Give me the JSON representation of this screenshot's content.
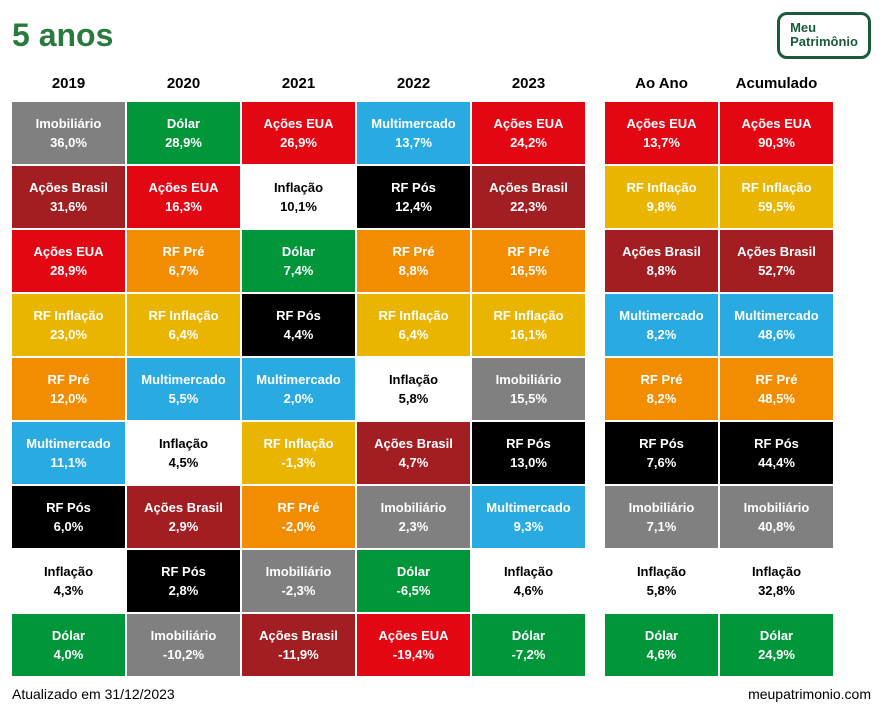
{
  "title": "5 anos",
  "logo": {
    "line1": "Meu",
    "line2": "Patrimônio"
  },
  "footer_left": "Atualizado em 31/12/2023",
  "footer_right": "meupatrimonio.com",
  "colors": {
    "imobiliario": {
      "bg": "#808080",
      "fg": "#ffffff"
    },
    "dolar": {
      "bg": "#009639",
      "fg": "#ffffff"
    },
    "acoes_eua": {
      "bg": "#e30613",
      "fg": "#ffffff"
    },
    "multimercado": {
      "bg": "#29abe2",
      "fg": "#ffffff"
    },
    "acoes_brasil": {
      "bg": "#a31e22",
      "fg": "#ffffff"
    },
    "rf_inflacao": {
      "bg": "#e9b500",
      "fg": "#ffffff"
    },
    "inflacao": {
      "bg": "#ffffff",
      "fg": "#000000"
    },
    "rf_pre": {
      "bg": "#f28c00",
      "fg": "#ffffff"
    },
    "rf_pos": {
      "bg": "#000000",
      "fg": "#ffffff"
    }
  },
  "columns": [
    {
      "header": "2019",
      "cells": [
        {
          "k": "imobiliario",
          "label": "Imobiliário",
          "value": "36,0%"
        },
        {
          "k": "acoes_brasil",
          "label": "Ações Brasil",
          "value": "31,6%"
        },
        {
          "k": "acoes_eua",
          "label": "Ações EUA",
          "value": "28,9%"
        },
        {
          "k": "rf_inflacao",
          "label": "RF Inflação",
          "value": "23,0%"
        },
        {
          "k": "rf_pre",
          "label": "RF Pré",
          "value": "12,0%"
        },
        {
          "k": "multimercado",
          "label": "Multimercado",
          "value": "11,1%"
        },
        {
          "k": "rf_pos",
          "label": "RF Pós",
          "value": "6,0%"
        },
        {
          "k": "inflacao",
          "label": "Inflação",
          "value": "4,3%"
        },
        {
          "k": "dolar",
          "label": "Dólar",
          "value": "4,0%"
        }
      ]
    },
    {
      "header": "2020",
      "cells": [
        {
          "k": "dolar",
          "label": "Dólar",
          "value": "28,9%"
        },
        {
          "k": "acoes_eua",
          "label": "Ações EUA",
          "value": "16,3%"
        },
        {
          "k": "rf_pre",
          "label": "RF Pré",
          "value": "6,7%"
        },
        {
          "k": "rf_inflacao",
          "label": "RF Inflação",
          "value": "6,4%"
        },
        {
          "k": "multimercado",
          "label": "Multimercado",
          "value": "5,5%"
        },
        {
          "k": "inflacao",
          "label": "Inflação",
          "value": "4,5%"
        },
        {
          "k": "acoes_brasil",
          "label": "Ações Brasil",
          "value": "2,9%"
        },
        {
          "k": "rf_pos",
          "label": "RF Pós",
          "value": "2,8%"
        },
        {
          "k": "imobiliario",
          "label": "Imobiliário",
          "value": "-10,2%"
        }
      ]
    },
    {
      "header": "2021",
      "cells": [
        {
          "k": "acoes_eua",
          "label": "Ações EUA",
          "value": "26,9%"
        },
        {
          "k": "inflacao",
          "label": "Inflação",
          "value": "10,1%"
        },
        {
          "k": "dolar",
          "label": "Dólar",
          "value": "7,4%"
        },
        {
          "k": "rf_pos",
          "label": "RF Pós",
          "value": "4,4%"
        },
        {
          "k": "multimercado",
          "label": "Multimercado",
          "value": "2,0%"
        },
        {
          "k": "rf_inflacao",
          "label": "RF Inflação",
          "value": "-1,3%"
        },
        {
          "k": "rf_pre",
          "label": "RF Pré",
          "value": "-2,0%"
        },
        {
          "k": "imobiliario",
          "label": "Imobiliário",
          "value": "-2,3%"
        },
        {
          "k": "acoes_brasil",
          "label": "Ações Brasil",
          "value": "-11,9%"
        }
      ]
    },
    {
      "header": "2022",
      "cells": [
        {
          "k": "multimercado",
          "label": "Multimercado",
          "value": "13,7%"
        },
        {
          "k": "rf_pos",
          "label": "RF Pós",
          "value": "12,4%"
        },
        {
          "k": "rf_pre",
          "label": "RF Pré",
          "value": "8,8%"
        },
        {
          "k": "rf_inflacao",
          "label": "RF Inflação",
          "value": "6,4%"
        },
        {
          "k": "inflacao",
          "label": "Inflação",
          "value": "5,8%"
        },
        {
          "k": "acoes_brasil",
          "label": "Ações Brasil",
          "value": "4,7%"
        },
        {
          "k": "imobiliario",
          "label": "Imobiliário",
          "value": "2,3%"
        },
        {
          "k": "dolar",
          "label": "Dólar",
          "value": "-6,5%"
        },
        {
          "k": "acoes_eua",
          "label": "Ações EUA",
          "value": "-19,4%"
        }
      ]
    },
    {
      "header": "2023",
      "cells": [
        {
          "k": "acoes_eua",
          "label": "Ações EUA",
          "value": "24,2%"
        },
        {
          "k": "acoes_brasil",
          "label": "Ações Brasil",
          "value": "22,3%"
        },
        {
          "k": "rf_pre",
          "label": "RF Pré",
          "value": "16,5%"
        },
        {
          "k": "rf_inflacao",
          "label": "RF Inflação",
          "value": "16,1%"
        },
        {
          "k": "imobiliario",
          "label": "Imobiliário",
          "value": "15,5%"
        },
        {
          "k": "rf_pos",
          "label": "RF Pós",
          "value": "13,0%"
        },
        {
          "k": "multimercado",
          "label": "Multimercado",
          "value": "9,3%"
        },
        {
          "k": "inflacao",
          "label": "Inflação",
          "value": "4,6%"
        },
        {
          "k": "dolar",
          "label": "Dólar",
          "value": "-7,2%"
        }
      ]
    }
  ],
  "summary_columns": [
    {
      "header": "Ao Ano",
      "cells": [
        {
          "k": "acoes_eua",
          "label": "Ações EUA",
          "value": "13,7%"
        },
        {
          "k": "rf_inflacao",
          "label": "RF Inflação",
          "value": "9,8%"
        },
        {
          "k": "acoes_brasil",
          "label": "Ações Brasil",
          "value": "8,8%"
        },
        {
          "k": "multimercado",
          "label": "Multimercado",
          "value": "8,2%"
        },
        {
          "k": "rf_pre",
          "label": "RF Pré",
          "value": "8,2%"
        },
        {
          "k": "rf_pos",
          "label": "RF Pós",
          "value": "7,6%"
        },
        {
          "k": "imobiliario",
          "label": "Imobiliário",
          "value": "7,1%"
        },
        {
          "k": "inflacao",
          "label": "Inflação",
          "value": "5,8%"
        },
        {
          "k": "dolar",
          "label": "Dólar",
          "value": "4,6%"
        }
      ]
    },
    {
      "header": "Acumulado",
      "cells": [
        {
          "k": "acoes_eua",
          "label": "Ações EUA",
          "value": "90,3%"
        },
        {
          "k": "rf_inflacao",
          "label": "RF Inflação",
          "value": "59,5%"
        },
        {
          "k": "acoes_brasil",
          "label": "Ações Brasil",
          "value": "52,7%"
        },
        {
          "k": "multimercado",
          "label": "Multimercado",
          "value": "48,6%"
        },
        {
          "k": "rf_pre",
          "label": "RF Pré",
          "value": "48,5%"
        },
        {
          "k": "rf_pos",
          "label": "RF Pós",
          "value": "44,4%"
        },
        {
          "k": "imobiliario",
          "label": "Imobiliário",
          "value": "40,8%"
        },
        {
          "k": "inflacao",
          "label": "Inflação",
          "value": "32,8%"
        },
        {
          "k": "dolar",
          "label": "Dólar",
          "value": "24,9%"
        }
      ]
    }
  ]
}
